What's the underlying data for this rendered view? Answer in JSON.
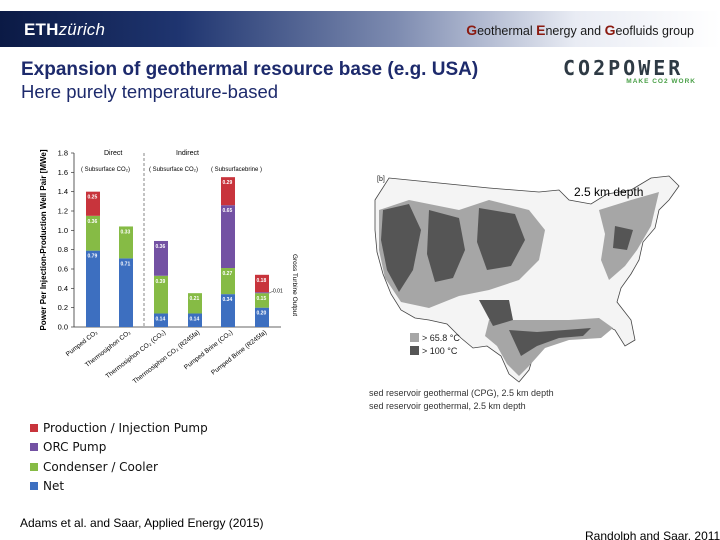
{
  "header": {
    "eth_bold": "ETH",
    "eth_rest": "zürich",
    "group_parts": [
      {
        "cap": "G",
        "rest": "eothermal "
      },
      {
        "cap": "E",
        "rest": "nergy and "
      },
      {
        "cap": "G",
        "rest": "eofluids "
      },
      {
        "cap": "",
        "rest": "group"
      }
    ]
  },
  "slide": {
    "title": "Expansion of geothermal resource base (e.g. USA)",
    "subtitle": "Here purely temperature-based"
  },
  "logo": {
    "main": "CO2POWER",
    "tagline": "MAKE CO2 WORK"
  },
  "chart_data": {
    "type": "bar",
    "stacked": true,
    "ylabel": "Power Per Injection-Production Well Pair [MWe]",
    "right_label": "Gross Turbine Output",
    "ylim": [
      0,
      1.8
    ],
    "yticks": [
      "0.0",
      "0.2",
      "0.4",
      "0.6",
      "0.8",
      "1.0",
      "1.2",
      "1.4",
      "1.6",
      "1.8"
    ],
    "section_labels": {
      "direct": "Direct",
      "indirect": "Indirect",
      "direct_sub": "( Subsurface CO₂)",
      "indirect_sub1": "( Subsurface CO₂)",
      "indirect_sub2": "( Subsurfacebrine )"
    },
    "categories": [
      "Pumped CO₂",
      "Thermosiphon CO₂",
      "Thermosiphon CO₂ (CO₂)",
      "Thermosiphon CO₂ (R245fa)",
      "Pumped Brine (CO₂)",
      "Pumped Brine (R245fa)"
    ],
    "series": [
      {
        "name": "Net",
        "color": "#3d6fc0",
        "values": [
          0.79,
          0.71,
          0.14,
          0.14,
          0.34,
          0.2
        ],
        "labels": [
          "0.79",
          "0.71",
          "0.14",
          "0.14",
          "0.34",
          "0.20"
        ]
      },
      {
        "name": "Condenser / Cooler",
        "color": "#86bb45",
        "values": [
          0.36,
          0.33,
          0.39,
          0.21,
          0.27,
          0.15
        ],
        "labels": [
          "0.36",
          "0.33",
          "0.39",
          "0.21",
          "0.27",
          "0.15"
        ]
      },
      {
        "name": "ORC Pump",
        "color": "#7351a3",
        "values": [
          0,
          0,
          0.36,
          0,
          0.65,
          0.01
        ],
        "labels": [
          "",
          "",
          "0.36",
          "",
          "0.65",
          "0.01"
        ]
      },
      {
        "name": "Production / Injection Pump",
        "color": "#c8343c",
        "values": [
          0.25,
          0,
          0,
          0,
          0.29,
          0.18
        ],
        "labels": [
          "0.25",
          "",
          "",
          "",
          "0.29",
          "0.18"
        ]
      }
    ],
    "legend_order": [
      3,
      2,
      1,
      0
    ]
  },
  "map": {
    "panel_label": "[b]",
    "depth_label": "2.5 km depth",
    "legend": [
      {
        "label": "> 65.8 °C",
        "color": "#a6a6a6"
      },
      {
        "label": "> 100 °C",
        "color": "#555555"
      }
    ],
    "caption_lines": [
      "sed reservoir geothermal (CPG), 2.5 km depth",
      "sed reservoir geothermal, 2.5 km depth"
    ]
  },
  "refs": {
    "left": "Adams et al. and Saar, Applied Energy (2015)",
    "right": "Randolph and Saar, 2011"
  }
}
